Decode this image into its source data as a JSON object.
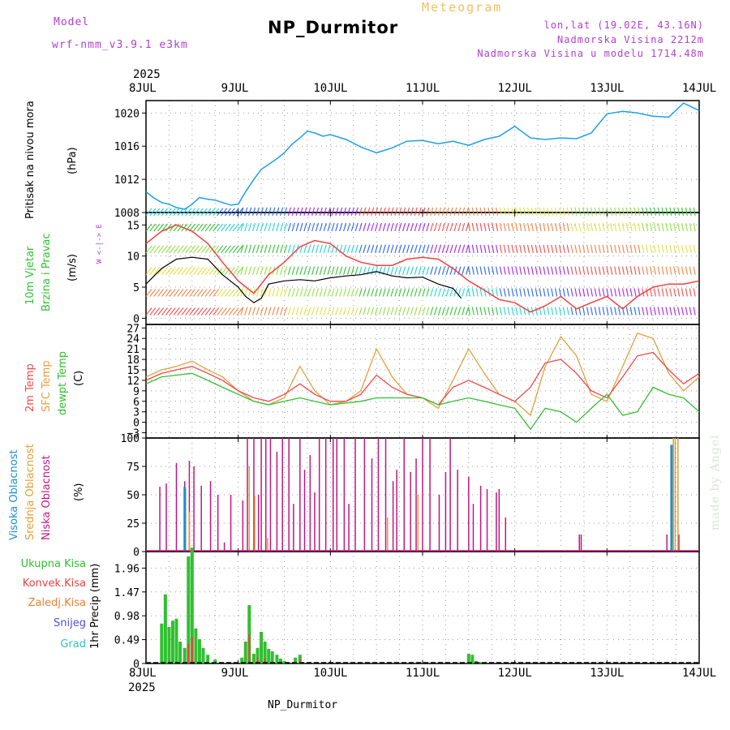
{
  "header": {
    "model_label": "Model",
    "model_name": "wrf-nmm_v3.9.1 e3km",
    "title": "NP_Durmitor",
    "subtitle": "Meteogram",
    "location": "lon,lat (19.02E, 43.16N)",
    "elevation": "Nadmorska Visina 2212m",
    "model_elevation": "Nadmorska Visina u modelu 1714.48m",
    "year_top": "2025",
    "year_bottom": "2025",
    "footer": "NP_Durmitor",
    "made_by": "made by Angel"
  },
  "dates": [
    "8JUL",
    "9JUL",
    "10JUL",
    "11JUL",
    "12JUL",
    "13JUL",
    "14JUL"
  ],
  "labels": {
    "pressure": "Pritisak na nivou mora",
    "pressure_unit": "(hPa)",
    "wind1": "10m Vjetar",
    "wind2": "Brzina i Pravac",
    "wind_unit": "(m/s)",
    "wind_rose": "W <-|-> E",
    "temp_2m": "2m Temp",
    "temp_sfc": "SFC Temp",
    "temp_dew": "dewpt Temp",
    "temp_unit": "(C)",
    "cloud_high": "Visoka Oblacnost",
    "cloud_mid": "Srednja Oblacnost",
    "cloud_low": "Niska Oblacnost",
    "cloud_unit": "(%)",
    "precip_total": "Ukupna Kisa",
    "precip_conv": "Konvek.Kisa",
    "precip_frz": "Zaledj.Kisa",
    "precip_snow": "Snijeg",
    "precip_hail": "Grad",
    "precip_unit": "1hr Precip (mm)"
  },
  "colors": {
    "pressure": "#1ea0e6",
    "temp_2m": "#f04848",
    "temp_sfc": "#e0a040",
    "temp_dew": "#30c030",
    "cloud_high": "#2090d0",
    "cloud_mid": "#e0a030",
    "cloud_low": "#c01880",
    "precip_total": "#30c030",
    "precip_conv": "#f04040",
    "precip_frz": "#f08030",
    "precip_snow": "#5050e0",
    "precip_hail": "#30c0c0",
    "wind_speed": "#000000",
    "wind_gust": "#f04040",
    "labels_pressure": "#1ea0e6",
    "labels_wind": "#30c030",
    "labels_wind_rose": "#b040d0"
  },
  "chart_data": [
    {
      "type": "line",
      "name": "pressure",
      "title": "Pritisak na nivou mora",
      "ylabel": "(hPa)",
      "x_range_days": [
        0,
        6
      ],
      "ylim": [
        1008,
        1021.5
      ],
      "yticks": [
        1008,
        1012,
        1016,
        1020
      ],
      "series": [
        {
          "name": "MSLP",
          "x": [
            0,
            0.08,
            0.17,
            0.25,
            0.33,
            0.42,
            0.5,
            0.58,
            0.67,
            0.75,
            0.83,
            0.92,
            1.0,
            1.08,
            1.17,
            1.25,
            1.33,
            1.42,
            1.5,
            1.58,
            1.67,
            1.75,
            1.83,
            1.92,
            2.0,
            2.17,
            2.33,
            2.5,
            2.67,
            2.83,
            3.0,
            3.17,
            3.33,
            3.5,
            3.67,
            3.83,
            4.0,
            4.17,
            4.33,
            4.5,
            4.67,
            4.83,
            5.0,
            5.17,
            5.33,
            5.5,
            5.67,
            5.83,
            6.0
          ],
          "values": [
            1010.5,
            1009.8,
            1009.2,
            1009.0,
            1008.6,
            1008.4,
            1009.0,
            1009.8,
            1009.6,
            1009.5,
            1009.2,
            1008.9,
            1009.0,
            1010.5,
            1012.0,
            1013.2,
            1013.8,
            1014.5,
            1015.2,
            1016.2,
            1017.0,
            1017.8,
            1017.6,
            1017.2,
            1017.4,
            1016.8,
            1015.9,
            1015.2,
            1015.8,
            1016.6,
            1016.7,
            1016.3,
            1016.6,
            1016.1,
            1016.8,
            1017.2,
            1018.4,
            1017.0,
            1016.8,
            1017.0,
            1016.9,
            1017.6,
            1019.9,
            1020.2,
            1020.0,
            1019.6,
            1019.5,
            1021.2,
            1020.3
          ]
        }
      ]
    },
    {
      "type": "line",
      "name": "wind",
      "title": "10m Vjetar Brzina i Pravac",
      "ylabel": "(m/s)",
      "x_range_days": [
        0,
        6
      ],
      "ylim": [
        -1,
        17
      ],
      "yticks": [
        0,
        5,
        10,
        15
      ],
      "series": [
        {
          "name": "speed",
          "x": [
            0,
            0.17,
            0.33,
            0.5,
            0.67,
            0.83,
            1.0,
            1.08,
            1.17,
            1.25,
            1.33,
            1.5,
            1.67,
            1.83,
            2.0,
            2.17,
            2.33,
            2.5,
            2.67,
            2.83,
            3.0,
            3.17,
            3.33,
            3.42
          ],
          "values": [
            5.5,
            8,
            9.5,
            9.8,
            9.5,
            7,
            5,
            3.5,
            2.5,
            3.2,
            5.5,
            6.0,
            6.2,
            6.0,
            6.5,
            6.8,
            7.0,
            7.5,
            6.8,
            6.5,
            6.6,
            5.5,
            4.8,
            3.2
          ]
        },
        {
          "name": "gust",
          "x": [
            0,
            0.17,
            0.33,
            0.5,
            0.67,
            0.83,
            1.0,
            1.17,
            1.33,
            1.5,
            1.67,
            1.83,
            2.0,
            2.17,
            2.33,
            2.5,
            2.67,
            2.83,
            3.0,
            3.17,
            3.33,
            3.5,
            3.67,
            3.83,
            4.0,
            4.17,
            4.33,
            4.5,
            4.67,
            4.83,
            5.0,
            5.17,
            5.33,
            5.5,
            5.67,
            5.83,
            6.0
          ],
          "values": [
            12,
            14,
            15,
            14,
            12,
            9,
            6,
            4,
            7,
            9,
            11.5,
            12.5,
            12,
            10,
            9,
            8.5,
            8.5,
            9.5,
            9.8,
            9.5,
            8,
            6,
            4.5,
            3,
            2.5,
            1,
            2,
            3.5,
            1.5,
            2.5,
            3.5,
            1.5,
            3.5,
            5.0,
            5.5,
            5.5,
            6.0
          ]
        }
      ]
    },
    {
      "type": "line",
      "name": "temperature",
      "ylabel": "(C)",
      "x_range_days": [
        0,
        6
      ],
      "ylim": [
        -4.5,
        28
      ],
      "yticks": [
        -3,
        0,
        3,
        6,
        9,
        12,
        15,
        18,
        21,
        24,
        27
      ],
      "series": [
        {
          "name": "2m Temp",
          "x": [
            0,
            0.17,
            0.33,
            0.5,
            0.67,
            0.83,
            1.0,
            1.17,
            1.33,
            1.5,
            1.67,
            1.83,
            2.0,
            2.17,
            2.33,
            2.5,
            2.67,
            2.83,
            3.0,
            3.17,
            3.33,
            3.5,
            3.67,
            3.83,
            4.0,
            4.17,
            4.33,
            4.5,
            4.67,
            4.83,
            5.0,
            5.17,
            5.33,
            5.5,
            5.67,
            5.83,
            6.0
          ],
          "values": [
            12,
            14,
            15,
            16,
            14,
            12,
            9,
            7,
            6,
            8,
            11,
            8,
            6,
            6,
            8,
            13.5,
            10,
            8,
            7,
            5,
            10,
            12,
            10,
            8,
            6,
            10,
            17,
            18,
            14,
            9,
            7,
            13,
            19,
            20,
            15,
            11,
            14
          ]
        },
        {
          "name": "SFC Temp",
          "x": [
            0,
            0.17,
            0.33,
            0.5,
            0.67,
            0.83,
            1.0,
            1.17,
            1.33,
            1.5,
            1.67,
            1.83,
            2.0,
            2.17,
            2.33,
            2.5,
            2.67,
            2.83,
            3.0,
            3.17,
            3.33,
            3.5,
            3.67,
            3.83,
            4.0,
            4.17,
            4.33,
            4.5,
            4.67,
            4.83,
            5.0,
            5.17,
            5.33,
            5.5,
            5.67,
            5.83,
            6.0
          ],
          "values": [
            13,
            15,
            16,
            17.5,
            15,
            13,
            9,
            6,
            5,
            7,
            16,
            9,
            5,
            6,
            9,
            21,
            13,
            8,
            7,
            4,
            12,
            21,
            14,
            8,
            6,
            2,
            16,
            24.5,
            19,
            8,
            6,
            16,
            25.5,
            24,
            14,
            9,
            13
          ]
        },
        {
          "name": "dewpt Temp",
          "x": [
            0,
            0.17,
            0.33,
            0.5,
            0.67,
            0.83,
            1.0,
            1.17,
            1.33,
            1.5,
            1.67,
            1.83,
            2.0,
            2.17,
            2.33,
            2.5,
            2.67,
            2.83,
            3.0,
            3.17,
            3.33,
            3.5,
            3.67,
            3.83,
            4.0,
            4.17,
            4.33,
            4.5,
            4.67,
            4.83,
            5.0,
            5.17,
            5.33,
            5.5,
            5.67,
            5.83,
            6.0
          ],
          "values": [
            11,
            13,
            13.5,
            14,
            12,
            10,
            8,
            6,
            5,
            6,
            7,
            6,
            5,
            5.5,
            6,
            7,
            7,
            7,
            7,
            5,
            6,
            7,
            6,
            5,
            4,
            -2,
            4,
            3,
            0,
            4,
            8,
            2,
            3,
            10,
            8,
            7,
            3
          ]
        }
      ]
    },
    {
      "type": "bar",
      "name": "clouds",
      "ylabel": "(%)",
      "x_range_days": [
        0,
        6
      ],
      "ylim": [
        0,
        100
      ],
      "yticks": [
        0,
        25,
        50,
        75,
        100
      ],
      "series": [
        {
          "name": "Niska Oblacnost",
          "x": [
            0.15,
            0.22,
            0.33,
            0.42,
            0.47,
            0.52,
            0.6,
            0.7,
            0.78,
            0.85,
            0.92,
            1.05,
            1.1,
            1.17,
            1.22,
            1.25,
            1.3,
            1.35,
            1.42,
            1.48,
            1.55,
            1.6,
            1.67,
            1.72,
            1.78,
            1.83,
            1.88,
            1.95,
            2.03,
            2.07,
            2.15,
            2.2,
            2.27,
            2.37,
            2.45,
            2.52,
            2.6,
            2.68,
            2.72,
            2.8,
            2.87,
            2.93,
            3.0,
            3.08,
            3.18,
            3.25,
            3.3,
            3.38,
            3.5,
            3.55,
            3.63,
            3.7,
            3.8,
            3.83,
            3.9,
            4.7,
            4.72,
            5.65,
            5.7,
            5.78
          ],
          "values": [
            57,
            60,
            78,
            62,
            80,
            75,
            58,
            62,
            50,
            8,
            50,
            45,
            100,
            100,
            50,
            100,
            100,
            100,
            88,
            100,
            100,
            42,
            100,
            72,
            85,
            52,
            100,
            100,
            100,
            100,
            100,
            42,
            100,
            100,
            82,
            100,
            100,
            62,
            72,
            100,
            70,
            82,
            100,
            100,
            50,
            70,
            100,
            72,
            66,
            42,
            58,
            55,
            52,
            55,
            30,
            15,
            15,
            15,
            15,
            15
          ]
        },
        {
          "name": "Srednja Oblacnost",
          "x": [
            0.43,
            0.47,
            1.12,
            1.18,
            1.32,
            2.62,
            2.95,
            5.72,
            5.74,
            5.77
          ],
          "values": [
            55,
            35,
            75,
            49,
            12,
            30,
            50,
            100,
            100,
            100
          ]
        },
        {
          "name": "Visoka Oblacnost",
          "x": [
            0.42,
            5.7
          ],
          "values": [
            57,
            94
          ]
        }
      ]
    },
    {
      "type": "bar",
      "name": "precipitation",
      "ylabel": "1hr Precip (mm)",
      "x_range_days": [
        0,
        6
      ],
      "ylim": [
        0,
        2.3
      ],
      "yticks": [
        0,
        0.49,
        0.98,
        1.47,
        1.96
      ],
      "series": [
        {
          "name": "Ukupna Kisa",
          "x": [
            0.17,
            0.21,
            0.25,
            0.29,
            0.33,
            0.37,
            0.42,
            0.46,
            0.5,
            0.54,
            0.58,
            0.62,
            0.67,
            0.75,
            1.04,
            1.08,
            1.12,
            1.17,
            1.21,
            1.25,
            1.29,
            1.33,
            1.37,
            1.42,
            1.46,
            1.5,
            1.62,
            1.67,
            3.5,
            3.54,
            3.58,
            3.62
          ],
          "values": [
            0.82,
            1.42,
            0.75,
            0.88,
            0.92,
            0.45,
            0.32,
            2.2,
            2.38,
            0.72,
            0.5,
            0.32,
            0.18,
            0.08,
            0.12,
            0.45,
            1.2,
            0.2,
            0.32,
            0.65,
            0.45,
            0.3,
            0.25,
            0.18,
            0.1,
            0.05,
            0.12,
            0.18,
            0.2,
            0.18,
            0.05,
            0.03
          ]
        },
        {
          "name": "Konvek.Kisa",
          "x": [
            0.46,
            0.5,
            1.12,
            1.21,
            1.29,
            1.67
          ],
          "values": [
            0.4,
            0.55,
            0.6,
            0.12,
            0.1,
            0.1
          ]
        }
      ]
    }
  ]
}
